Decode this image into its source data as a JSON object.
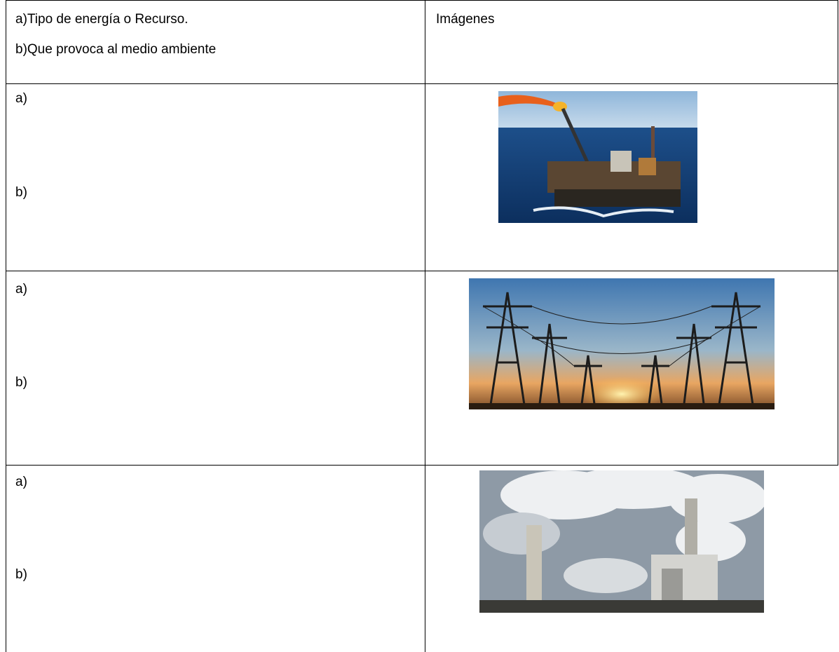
{
  "table": {
    "header": {
      "description": [
        "a)Tipo de energía o Recurso.",
        "b)Que provoca al medio ambiente"
      ],
      "images": "Imágenes"
    },
    "rows": [
      [
        "a)",
        "b)"
      ],
      [
        "a)",
        "b)"
      ],
      [
        "a)",
        "b)"
      ]
    ]
  }
}
